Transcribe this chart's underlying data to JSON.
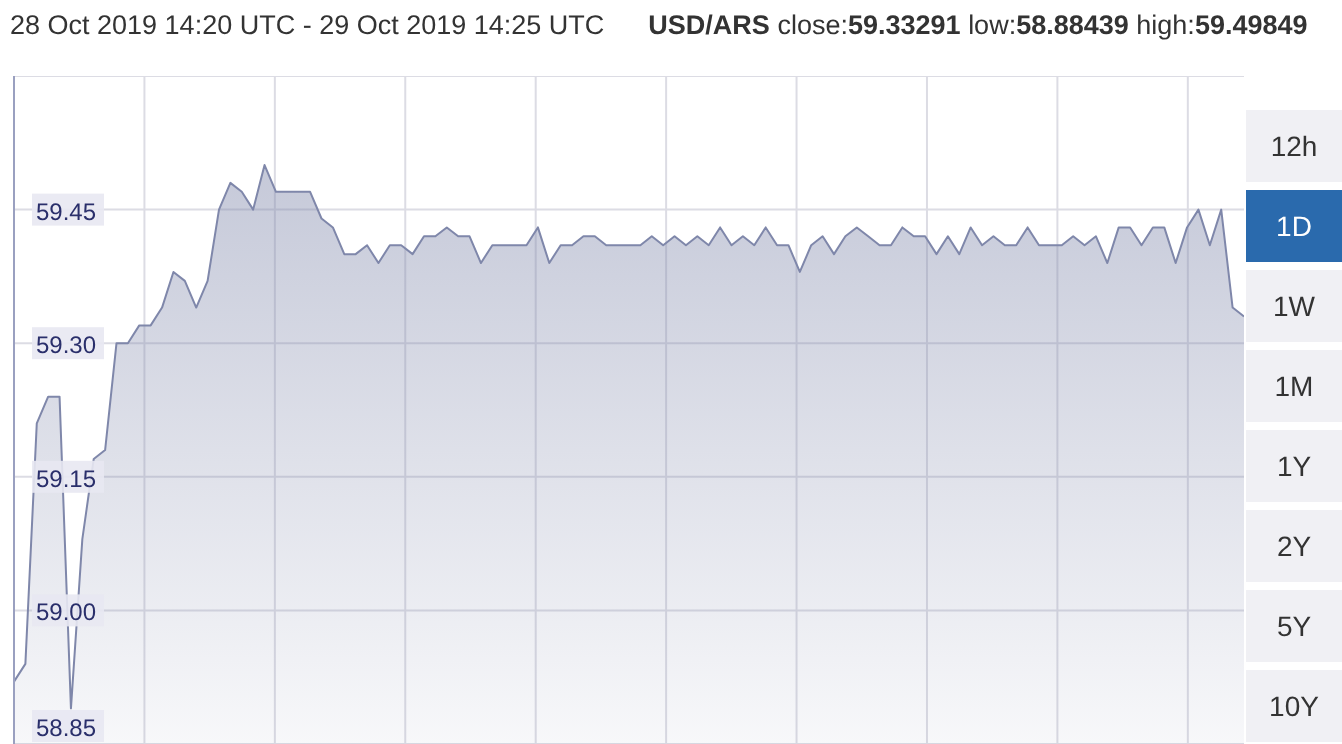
{
  "chart_data": {
    "type": "area",
    "title": "28 Oct 2019 14:20 UTC - 29 Oct 2019 14:25 UTC",
    "subtitle": "USD/ARS close:59.33291 low:58.88439 high:59.49849",
    "categories": [
      null,
      null,
      null,
      null,
      null,
      null,
      null,
      null,
      null,
      null,
      null,
      null,
      null,
      null,
      null,
      null,
      null,
      null,
      null,
      null,
      null,
      null,
      null,
      null,
      null,
      null,
      null,
      null,
      null,
      null,
      null,
      null,
      null,
      null,
      null,
      null,
      null,
      null,
      null,
      null,
      null,
      null,
      null,
      null,
      null,
      null,
      null,
      null,
      null,
      null,
      null,
      null,
      null,
      null,
      null,
      null,
      null,
      null,
      null,
      null,
      null,
      null,
      null,
      null,
      null,
      null,
      null,
      null,
      null,
      null,
      null,
      null,
      null,
      null,
      null,
      null,
      null,
      null,
      null,
      null,
      null,
      null,
      null,
      null,
      null,
      null,
      null,
      null,
      null,
      null,
      null,
      null,
      null,
      null,
      null,
      null,
      null,
      null,
      null,
      null,
      null,
      null,
      null,
      null,
      null,
      null,
      null,
      null,
      null
    ],
    "series": [
      {
        "color": "#7f87aa",
        "values": [
          58.92,
          58.94,
          59.21,
          59.24,
          59.24,
          58.89,
          59.08,
          59.17,
          59.18,
          59.3,
          59.3,
          59.32,
          59.32,
          59.34,
          59.38,
          59.37,
          59.34,
          59.37,
          59.45,
          59.48,
          59.47,
          59.45,
          59.5,
          59.47,
          59.47,
          59.47,
          59.47,
          59.44,
          59.43,
          59.4,
          59.4,
          59.41,
          59.39,
          59.41,
          59.41,
          59.4,
          59.42,
          59.42,
          59.43,
          59.42,
          59.42,
          59.39,
          59.41,
          59.41,
          59.41,
          59.41,
          59.43,
          59.39,
          59.41,
          59.41,
          59.42,
          59.42,
          59.41,
          59.41,
          59.41,
          59.41,
          59.42,
          59.41,
          59.42,
          59.41,
          59.42,
          59.41,
          59.43,
          59.41,
          59.42,
          59.41,
          59.43,
          59.41,
          59.41,
          59.38,
          59.41,
          59.42,
          59.4,
          59.42,
          59.43,
          59.42,
          59.41,
          59.41,
          59.43,
          59.42,
          59.42,
          59.4,
          59.42,
          59.4,
          59.43,
          59.41,
          59.42,
          59.41,
          59.41,
          59.43,
          59.41,
          59.41,
          59.41,
          59.42,
          59.41,
          59.42,
          59.39,
          59.43,
          59.43,
          59.41,
          59.43,
          59.43,
          59.39,
          59.43,
          59.45,
          59.41,
          59.45,
          59.34,
          59.33
        ]
      }
    ],
    "ylim": [
      58.85,
      59.6
    ],
    "yticks": [
      {
        "value": 58.85,
        "label": "58.85"
      },
      {
        "value": 59,
        "label": "59.00"
      },
      {
        "value": 59.15,
        "label": "59.15"
      },
      {
        "value": 59.3,
        "label": "59.30"
      },
      {
        "value": 59.45,
        "label": "59.45"
      }
    ],
    "grid": true,
    "tick_labels": "y",
    "annotations": [
      "12h",
      "1D",
      "1W",
      "1M",
      "1Y",
      "2Y",
      "5Y",
      "10Y"
    ]
  }
}
